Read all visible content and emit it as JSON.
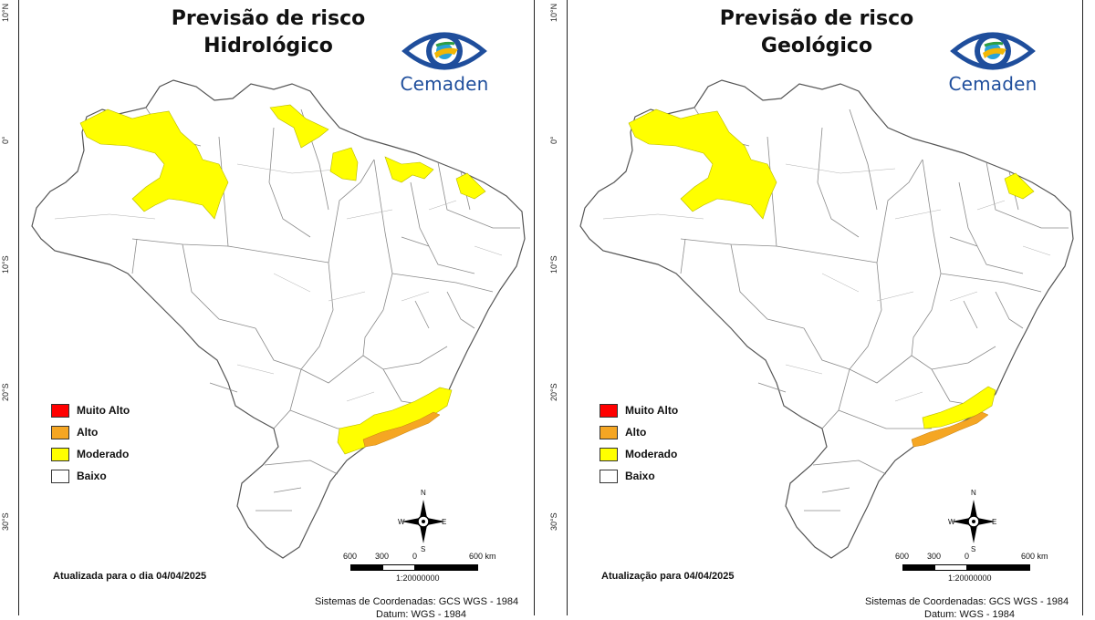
{
  "colors": {
    "muito_alto": "#ff0000",
    "alto": "#f5a623",
    "moderado": "#ffff00",
    "baixo": "#ffffff",
    "border": "#7a7a7a",
    "accent_logo": "#1f4e9c"
  },
  "lat_labels": [
    "10°N",
    "0°",
    "10°S",
    "20°S",
    "30°S"
  ],
  "legend": [
    {
      "label": "Muito Alto",
      "color": "#ff0000"
    },
    {
      "label": "Alto",
      "color": "#f5a623"
    },
    {
      "label": "Moderado",
      "color": "#ffff00"
    },
    {
      "label": "Baixo",
      "color": "#ffffff"
    }
  ],
  "scale": {
    "ticks": [
      "600",
      "300",
      "0",
      "600 km"
    ],
    "ratio": "1:20000000"
  },
  "compass": {
    "n": "N",
    "s": "S",
    "e": "E",
    "w": "W"
  },
  "logo_text": "Cemaden",
  "maps": [
    {
      "title_line1": "Previsão de risco",
      "title_line2": "Hidrológico",
      "updated": "Atualizada para o dia 04/04/2025",
      "coords": "Sistemas de Coordenadas: GCS WGS - 1984",
      "datum": "Datum: WGS - 1984",
      "risk_areas": {
        "amazonas_west": "Moderado",
        "roraima_north": "Moderado",
        "amapa_north": "Moderado",
        "para_north": "Moderado",
        "maranhao_north": "Moderado",
        "ceara_north": "Moderado",
        "southeast_coast": "Moderado",
        "southeast_coast_inner": "Alto"
      }
    },
    {
      "title_line1": "Previsão de risco",
      "title_line2": "Geológico",
      "updated": "Atualização para 04/04/2025",
      "coords": "Sistemas de Coordenadas: GCS WGS - 1984",
      "datum": "Datum: WGS - 1984",
      "risk_areas": {
        "amazonas_west": "Moderado",
        "ceara_north": "Moderado",
        "southeast_coast": "Moderado",
        "southeast_coast_inner": "Alto"
      }
    }
  ]
}
